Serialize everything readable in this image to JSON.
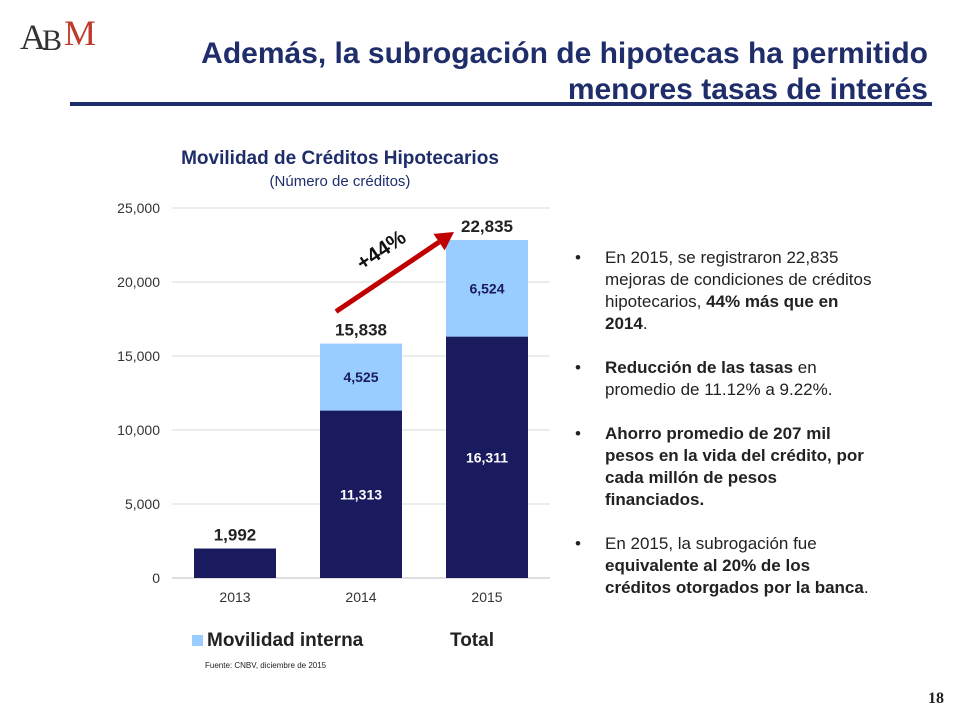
{
  "logo": {
    "letters": [
      "A",
      "B",
      "M"
    ]
  },
  "title": {
    "line1": "Además, la subrogación de hipotecas ha permitido",
    "line2": "menores tasas de interés"
  },
  "chart_data": {
    "type": "bar",
    "stacked": true,
    "title": "Movilidad de Créditos Hipotecarios",
    "subtitle": "(Número de créditos)",
    "categories": [
      "2013",
      "2014",
      "2015"
    ],
    "series": [
      {
        "name": "Total",
        "values": [
          1992,
          11313,
          16311
        ],
        "color": "#1a1a5e"
      },
      {
        "name": "Movilidad interna",
        "values": [
          0,
          4525,
          6524
        ],
        "color": "#99ccff"
      }
    ],
    "segment_labels": [
      [
        "",
        ""
      ],
      [
        "11,313",
        "4,525"
      ],
      [
        "16,311",
        "6,524"
      ]
    ],
    "totals": [
      "1,992",
      "15,838",
      "22,835"
    ],
    "ylim": [
      0,
      25000
    ],
    "yticks": [
      0,
      5000,
      10000,
      15000,
      20000,
      25000
    ],
    "ytick_labels": [
      "0",
      "5,000",
      "10,000",
      "15,000",
      "20,000",
      "25,000"
    ],
    "grid": true,
    "legend_position": "bottom",
    "annotation": {
      "text": "+44%",
      "from_category": "2014",
      "to_category": "2015",
      "color": "#c00000"
    }
  },
  "legend": {
    "interna": "Movilidad interna",
    "total": "Total"
  },
  "source": "Fuente: CNBV, diciembre de 2015",
  "bullets": [
    {
      "pre": "En 2015, se registraron 22,835 mejoras de condiciones de créditos hipotecarios, ",
      "bold": "44% más que en 2014",
      "post": "."
    },
    {
      "pre": "",
      "bold": "Reducción de las tasas",
      "post": " en promedio de 11.12% a 9.22%."
    },
    {
      "pre": "",
      "bold": "Ahorro promedio de 207 mil pesos en la vida del crédito, por cada millón de pesos financiados.",
      "post": ""
    },
    {
      "pre": "En 2015, la subrogación fue ",
      "bold": "equivalente al 20% de los créditos otorgados por la banca",
      "post": "."
    }
  ],
  "page_number": "18"
}
